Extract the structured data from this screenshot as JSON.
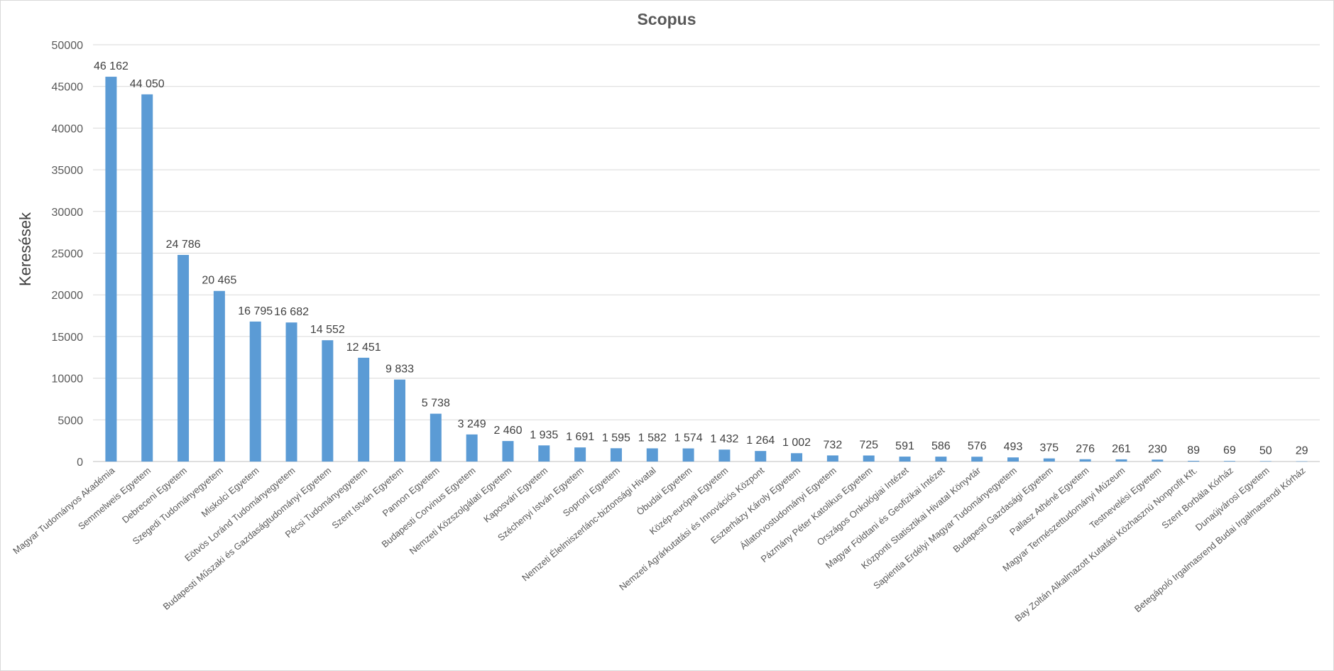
{
  "chart_data": {
    "type": "bar",
    "title": "Scopus",
    "xlabel": "",
    "ylabel": "Keresések",
    "ylim": [
      0,
      50000
    ],
    "yticks": [
      "0",
      "5000",
      "10000",
      "15000",
      "20000",
      "25000",
      "30000",
      "35000",
      "40000",
      "45000",
      "50000"
    ],
    "grid": true,
    "legend": "none",
    "bar_color": "#5b9bd5",
    "categories": [
      "Magyar Tudományos Akadémia",
      "Semmelweis Egyetem",
      "Debreceni Egyetem",
      "Szegedi Tudományegyetem",
      "Miskolci Egyetem",
      "Eötvös Loránd Tudományegyetem",
      "Budapesti Műszaki és Gazdaságtudományi Egyetem",
      "Pécsi Tudományegyetem",
      "Szent István Egyetem",
      "Pannon Egyetem",
      "Budapesti Corvinus Egyetem",
      "Nemzeti Közszolgálati Egyetem",
      "Kaposvári Egyetem",
      "Széchenyi István Egyetem",
      "Soproni Egyetem",
      "Nemzeti Élelmiszerlánc-biztonsági Hivatal",
      "Óbudai Egyetem",
      "Közép-európai Egyetem",
      "Nemzeti Agrárkutatási és Innovációs Központ",
      "Eszterházy Károly Egyetem",
      "Állatorvostudományi Egyetem",
      "Pázmány Péter Katolikus Egyetem",
      "Országos Onkológiai Intézet",
      "Magyar Földtani és Geofizikai Intézet",
      "Központi Statisztikai Hivatal Könyvtár",
      "Sapientia Erdélyi Magyar Tudományegyetem",
      "Budapesti Gazdasági Egyetem",
      "Pallasz Athéné Egyetem",
      "Magyar Természettudományi Múzeum",
      "Testnevelési Egyetem",
      "Bay Zoltán Alkalmazott Kutatási Közhasznú Nonprofit Kft.",
      "Szent Borbála Kórház",
      "Dunaújvárosi Egyetem",
      "Betegápoló Irgalmasrend Budai Irgalmasrendi Kórház"
    ],
    "values": [
      46162,
      44050,
      24786,
      20465,
      16795,
      16682,
      14552,
      12451,
      9833,
      5738,
      3249,
      2460,
      1935,
      1691,
      1595,
      1582,
      1574,
      1432,
      1264,
      1002,
      732,
      725,
      591,
      586,
      576,
      493,
      375,
      276,
      261,
      230,
      89,
      69,
      50,
      29
    ],
    "data_labels": [
      "46 162",
      "44 050",
      "24 786",
      "20 465",
      "16 795",
      "16 682",
      "14 552",
      "12 451",
      "9 833",
      "5 738",
      "3 249",
      "2 460",
      "1 935",
      "1 691",
      "1 595",
      "1 582",
      "1 574",
      "1 432",
      "1 264",
      "1 002",
      "732",
      "725",
      "591",
      "586",
      "576",
      "493",
      "375",
      "276",
      "261",
      "230",
      "89",
      "69",
      "50",
      "29"
    ]
  }
}
